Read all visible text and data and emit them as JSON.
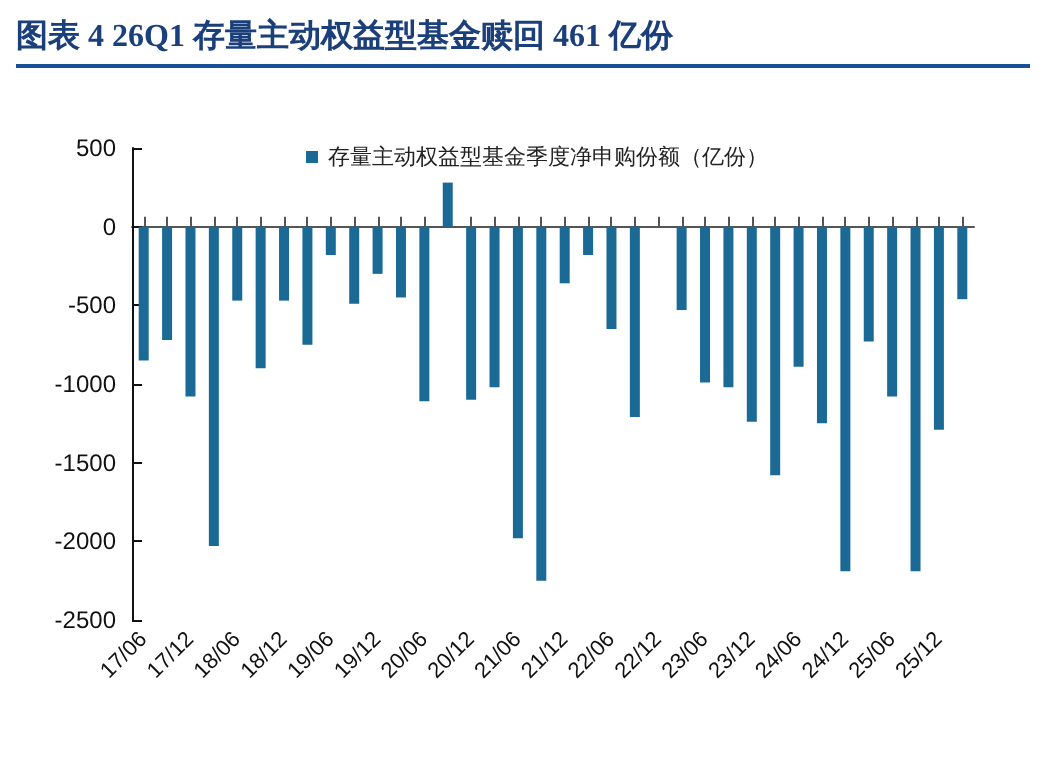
{
  "chart_data": {
    "type": "bar",
    "title": "图表 4   26Q1 存量主动权益型基金赎回 461 亿份",
    "categories": [
      "17/06",
      null,
      "17/12",
      null,
      "18/06",
      null,
      "18/12",
      null,
      "19/06",
      null,
      "19/12",
      null,
      "20/06",
      null,
      "20/12",
      null,
      "21/06",
      null,
      "21/12",
      null,
      "22/06",
      null,
      "22/12",
      null,
      "23/06",
      null,
      "23/12",
      null,
      "24/06",
      null,
      "24/12",
      null,
      "25/06",
      null,
      "25/12",
      null
    ],
    "series": [
      {
        "name": "存量主动权益型基金季度净申购份额（亿份）",
        "color": "#1b6a96",
        "values": [
          -850,
          -720,
          -1080,
          -2030,
          -470,
          -900,
          -470,
          -750,
          -180,
          -490,
          -300,
          -450,
          -1110,
          280,
          -1100,
          -1020,
          -1980,
          -2250,
          -360,
          -180,
          -650,
          -1210,
          0,
          -530,
          -990,
          -1020,
          -1240,
          -1580,
          -890,
          -1250,
          -2190,
          -730,
          -1080,
          -2190,
          -1290,
          -461
        ]
      }
    ],
    "ylim": [
      -2500,
      500
    ],
    "yticks": [
      -2500,
      -2000,
      -1500,
      -1000,
      -500,
      0,
      500
    ],
    "legend": "top"
  }
}
